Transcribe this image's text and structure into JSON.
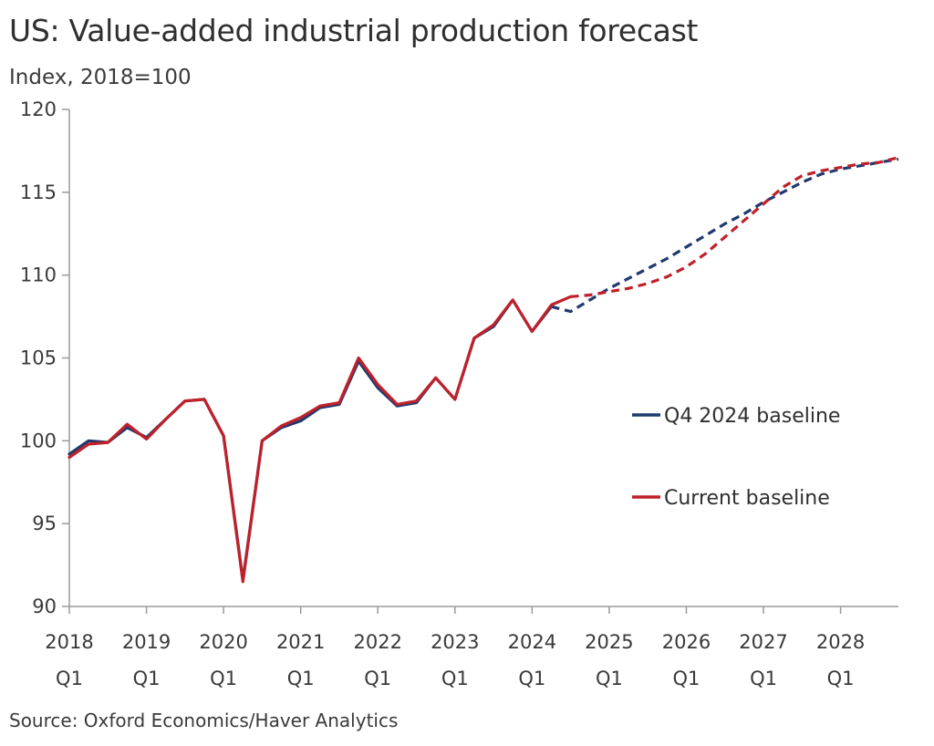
{
  "title": "US: Value-added industrial production forecast",
  "subtitle": "Index, 2018=100",
  "source": "Source: Oxford Economics/Haver Analytics",
  "colors": {
    "q4_2024": "#1f3a6e",
    "current": "#c0202a",
    "axis": "#9a9a9a"
  },
  "chart_data": {
    "type": "line",
    "title": "US: Value-added industrial production forecast",
    "ylabel": "Index, 2018=100",
    "xlabel": "",
    "ylim": [
      90,
      120
    ],
    "yticks": [
      90,
      95,
      100,
      105,
      110,
      115,
      120
    ],
    "grid": false,
    "legend_position": "right",
    "x_start": "2018Q1",
    "x_ticks": [
      {
        "index": 0,
        "year": "2018",
        "quarter": "Q1"
      },
      {
        "index": 4,
        "year": "2019",
        "quarter": "Q1"
      },
      {
        "index": 8,
        "year": "2020",
        "quarter": "Q1"
      },
      {
        "index": 12,
        "year": "2021",
        "quarter": "Q1"
      },
      {
        "index": 16,
        "year": "2022",
        "quarter": "Q1"
      },
      {
        "index": 20,
        "year": "2023",
        "quarter": "Q1"
      },
      {
        "index": 24,
        "year": "2024",
        "quarter": "Q1"
      },
      {
        "index": 28,
        "year": "2025",
        "quarter": "Q1"
      },
      {
        "index": 32,
        "year": "2026",
        "quarter": "Q1"
      },
      {
        "index": 36,
        "year": "2027",
        "quarter": "Q1"
      },
      {
        "index": 40,
        "year": "2028",
        "quarter": "Q1"
      }
    ],
    "n_quarters": 44,
    "series": [
      {
        "name": "Q4 2024 baseline",
        "color_key": "q4_2024",
        "history_end_index": 25,
        "values": [
          99.2,
          100.0,
          99.9,
          100.8,
          100.2,
          101.3,
          102.4,
          102.5,
          100.3,
          91.6,
          100.0,
          100.8,
          101.2,
          102.0,
          102.2,
          104.8,
          103.2,
          102.1,
          102.3,
          103.8,
          102.5,
          106.2,
          106.9,
          108.5,
          106.6,
          108.1,
          107.8,
          108.5,
          109.2,
          109.8,
          110.4,
          111.0,
          111.7,
          112.4,
          113.1,
          113.7,
          114.4,
          115.0,
          115.6,
          116.1,
          116.4,
          116.6,
          116.8,
          117.0
        ]
      },
      {
        "name": "Current baseline",
        "color_key": "current",
        "history_end_index": 26,
        "values": [
          99.0,
          99.8,
          99.9,
          101.0,
          100.1,
          101.3,
          102.4,
          102.5,
          100.3,
          91.5,
          100.0,
          100.9,
          101.4,
          102.1,
          102.3,
          105.0,
          103.4,
          102.2,
          102.4,
          103.8,
          102.5,
          106.2,
          107.0,
          108.5,
          106.6,
          108.2,
          108.7,
          108.8,
          109.0,
          109.2,
          109.5,
          109.9,
          110.5,
          111.3,
          112.3,
          113.3,
          114.3,
          115.3,
          116.0,
          116.3,
          116.5,
          116.7,
          116.8,
          117.1
        ]
      }
    ]
  }
}
